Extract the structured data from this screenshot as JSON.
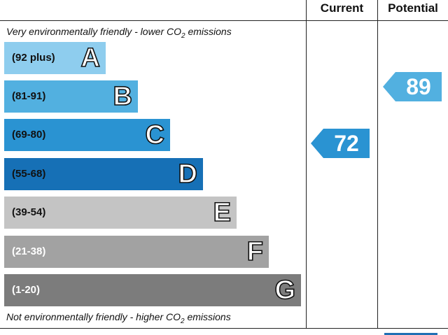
{
  "chart_data": {
    "type": "bar",
    "columns": {
      "current": "Current",
      "potential": "Potential"
    },
    "top_note": "Very environmentally friendly - lower CO",
    "top_note_tail": " emissions",
    "bottom_note": "Not environmentally friendly - higher CO",
    "bottom_note_tail": " emissions",
    "subscript": "2",
    "bands": [
      {
        "range": "(92 plus)",
        "letter": "A",
        "color": "#8ecdee",
        "text_color": "#111111"
      },
      {
        "range": "(81-91)",
        "letter": "B",
        "color": "#52b0e0",
        "text_color": "#111111"
      },
      {
        "range": "(69-80)",
        "letter": "C",
        "color": "#2a93d2",
        "text_color": "#111111"
      },
      {
        "range": "(55-68)",
        "letter": "D",
        "color": "#1670b6",
        "text_color": "#111111"
      },
      {
        "range": "(39-54)",
        "letter": "E",
        "color": "#c4c4c4",
        "text_color": "#111111"
      },
      {
        "range": "(21-38)",
        "letter": "F",
        "color": "#a2a2a2",
        "text_color": "#ffffff"
      },
      {
        "range": "(1-20)",
        "letter": "G",
        "color": "#7c7c7c",
        "text_color": "#ffffff"
      }
    ],
    "current": {
      "value": "72",
      "color": "#2a93d2"
    },
    "potential": {
      "value": "89",
      "color": "#52b0e0"
    }
  }
}
